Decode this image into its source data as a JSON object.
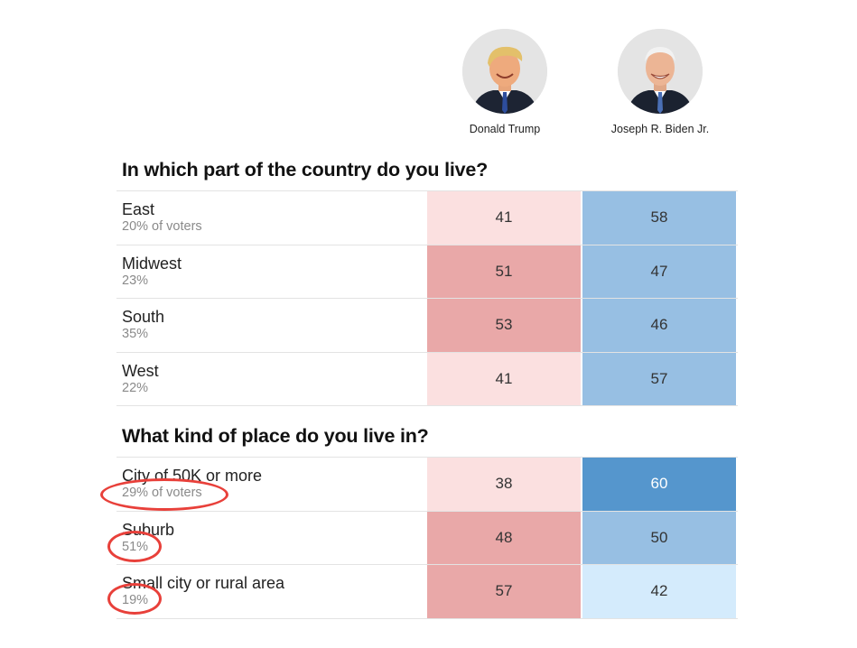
{
  "candidates": [
    {
      "name": "Donald Trump",
      "icon": "donald-trump-photo-icon"
    },
    {
      "name": "Joseph R. Biden Jr.",
      "icon": "joseph-biden-photo-icon"
    }
  ],
  "chart_data": [
    {
      "type": "table",
      "title": "In which part of the country do you live?",
      "columns": [
        "Donald Trump",
        "Joseph R. Biden Jr."
      ],
      "rows": [
        {
          "label": "East",
          "share": "20% of voters",
          "values": [
            41,
            58
          ]
        },
        {
          "label": "Midwest",
          "share": "23%",
          "values": [
            51,
            47
          ]
        },
        {
          "label": "South",
          "share": "35%",
          "values": [
            53,
            46
          ]
        },
        {
          "label": "West",
          "share": "22%",
          "values": [
            41,
            57
          ]
        }
      ]
    },
    {
      "type": "table",
      "title": "What kind of place do you live in?",
      "columns": [
        "Donald Trump",
        "Joseph R. Biden Jr."
      ],
      "rows": [
        {
          "label": "City of 50K or more",
          "share": "29% of voters",
          "values": [
            38,
            60
          ]
        },
        {
          "label": "Suburb",
          "share": "51%",
          "values": [
            48,
            50
          ]
        },
        {
          "label": "Small city or rural area",
          "share": "19%",
          "values": [
            57,
            42
          ]
        }
      ]
    }
  ],
  "colors": {
    "trump_light": "#fbe0e0",
    "trump_medium": "#e9a8a8",
    "biden_pale": "#d4ebfc",
    "biden_light": "#97bfe3",
    "biden_strong": "#5596cd",
    "highlight_circle": "#e8403a"
  },
  "annotations": [
    "29% of voters",
    "51%",
    "19%"
  ]
}
